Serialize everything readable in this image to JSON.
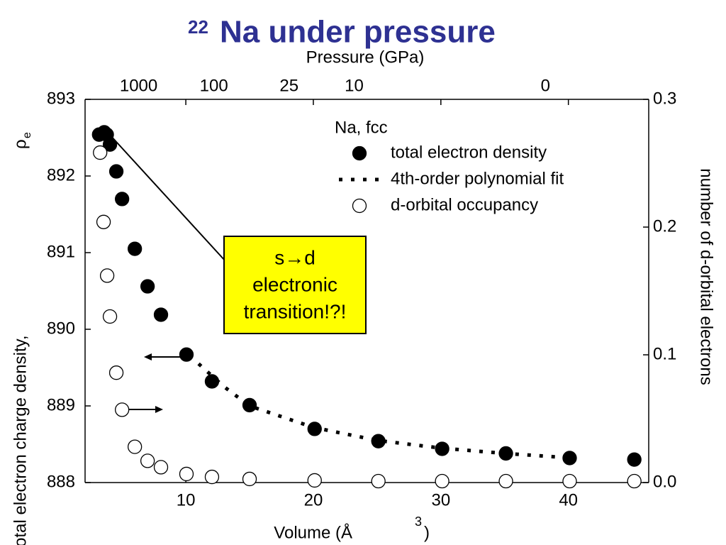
{
  "chart_data": {
    "type": "scatter",
    "title_prefix": "22",
    "title": "Na under pressure",
    "xlabel": [
      "Volume (Å",
      "3",
      ")"
    ],
    "ylabel": [
      "total electron charge density,",
      "ρ",
      "e"
    ],
    "y2label": "number of d-orbital electrons",
    "x2label": "Pressure (GPa)",
    "xlim": [
      2.1,
      46.3
    ],
    "xticks": [
      10,
      20,
      30,
      40
    ],
    "ylim": [
      888,
      893
    ],
    "yticks": [
      888,
      889,
      890,
      891,
      892,
      893
    ],
    "y2lim": [
      0,
      0.3
    ],
    "y2ticks": [
      {
        "value": 0,
        "label": "0.0"
      },
      0.1,
      0.2,
      0.3
    ],
    "x2ticks": [
      1000,
      100,
      25,
      10,
      0
    ],
    "x2tick_positions": [
      6.3,
      12.2,
      18.1,
      23.2,
      38.2
    ],
    "legend_title": "Na, fcc",
    "legend_position": "upper center",
    "series": [
      {
        "name": "total electron density",
        "color": "#000000",
        "marker": "filled",
        "x": [
          3.2,
          3.6,
          3.8,
          4.05,
          4.55,
          5.0,
          6.0,
          7.0,
          8.05,
          10.05,
          12.05,
          15.0,
          20.1,
          25.1,
          30.1,
          35.1,
          40.1,
          45.17
        ],
        "values": [
          892.54,
          892.57,
          892.54,
          892.41,
          892.06,
          891.7,
          891.05,
          890.56,
          890.19,
          889.67,
          889.32,
          889.01,
          888.7,
          888.54,
          888.44,
          888.38,
          888.32,
          888.3
        ]
      },
      {
        "name": "4th-order polynomial fit",
        "color": "#000000",
        "marker": "dotted-line",
        "x": [
          11,
          13,
          15,
          20,
          25,
          30,
          35,
          39.5
        ],
        "values": [
          889.55,
          889.25,
          889.0,
          888.72,
          888.55,
          888.45,
          888.38,
          888.33
        ]
      },
      {
        "name": "d-orbital occupancy",
        "color": "#000000",
        "marker": "open",
        "axis": "y2",
        "x": [
          3.28,
          3.55,
          3.83,
          4.05,
          4.55,
          5.0,
          6.0,
          7.0,
          8.05,
          10.05,
          12.05,
          15.0,
          20.1,
          25.1,
          30.1,
          35.1,
          40.1,
          45.17
        ],
        "values": [
          0.2583,
          0.204,
          0.162,
          0.13,
          0.086,
          0.057,
          0.028,
          0.017,
          0.012,
          0.0067,
          0.0044,
          0.0028,
          0.0017,
          0.0011,
          0.0011,
          0.0011,
          0.0011,
          0.0011
        ]
      }
    ],
    "annotation": [
      "s→d",
      "electronic",
      "transition!?!"
    ]
  }
}
